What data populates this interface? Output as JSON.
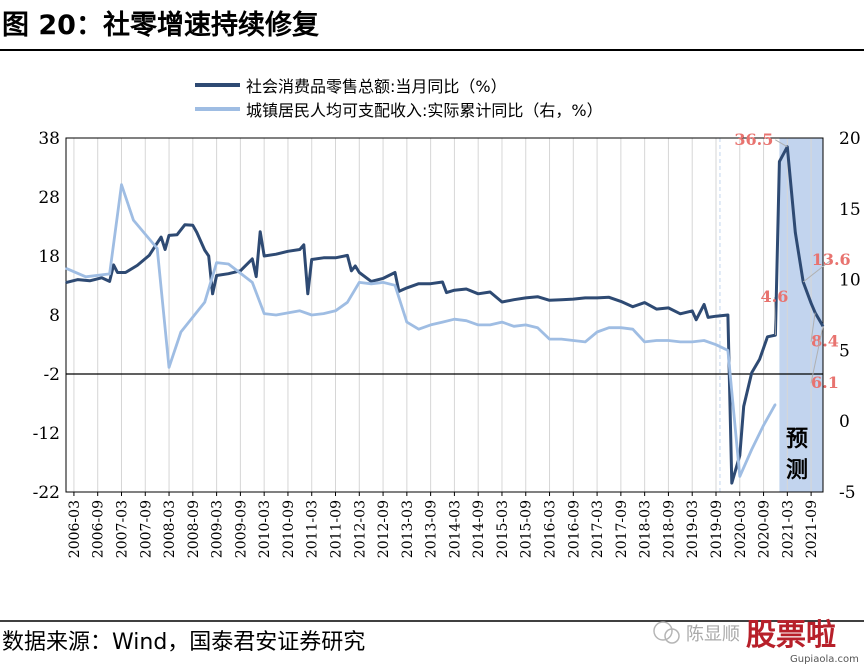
{
  "figure": {
    "title": "图 20：社零增速持续修复",
    "source": "数据来源：Wind，国泰君安证券研究",
    "watermark": {
      "text": "陈显顺",
      "logo_text": "股票啦",
      "url": "Gupiaola.com"
    }
  },
  "colors": {
    "series_dark": "#2e4a73",
    "series_light": "#9fbde3",
    "forecast_fill": "#c2d4ee",
    "annotation": "#e8736f",
    "text": "#000000"
  },
  "chart_data": {
    "type": "line",
    "title": "",
    "left_axis": {
      "min": -22,
      "max": 38,
      "ticks": [
        "38",
        "28",
        "18",
        "8",
        "-2",
        "-12",
        "-22"
      ]
    },
    "right_axis": {
      "min": -5,
      "max": 20,
      "ticks": [
        "20",
        "15",
        "10",
        "5",
        "0",
        "-5"
      ]
    },
    "x_range": [
      "2006-01",
      "2021-12"
    ],
    "x_ticks": [
      "2006-03",
      "2006-09",
      "2007-03",
      "2007-09",
      "2008-03",
      "2008-09",
      "2009-03",
      "2009-09",
      "2010-03",
      "2010-09",
      "2011-03",
      "2011-09",
      "2012-03",
      "2012-09",
      "2013-03",
      "2013-09",
      "2014-03",
      "2014-09",
      "2015-03",
      "2015-09",
      "2016-03",
      "2016-09",
      "2017-03",
      "2017-09",
      "2018-03",
      "2018-09",
      "2019-03",
      "2019-09",
      "2020-03",
      "2020-09",
      "2021-03",
      "2021-09"
    ],
    "forecast_start": "2021-01",
    "forecast_label": "预测",
    "grid": true,
    "legend_position": "top-center",
    "series": [
      {
        "name": "社会消费品零售总额:当月同比（%）",
        "axis": "left",
        "points": [
          [
            "2006-01",
            13.5
          ],
          [
            "2006-04",
            14.0
          ],
          [
            "2006-07",
            13.8
          ],
          [
            "2006-10",
            14.3
          ],
          [
            "2006-12",
            13.7
          ],
          [
            "2007-01",
            16.5
          ],
          [
            "2007-02",
            15.2
          ],
          [
            "2007-04",
            15.2
          ],
          [
            "2007-07",
            16.4
          ],
          [
            "2007-10",
            18.1
          ],
          [
            "2007-12",
            20.2
          ],
          [
            "2008-01",
            21.2
          ],
          [
            "2008-02",
            19.1
          ],
          [
            "2008-03",
            21.5
          ],
          [
            "2008-05",
            21.6
          ],
          [
            "2008-07",
            23.3
          ],
          [
            "2008-09",
            23.2
          ],
          [
            "2008-10",
            22.0
          ],
          [
            "2008-12",
            19.0
          ],
          [
            "2009-01",
            18.0
          ],
          [
            "2009-02",
            11.6
          ],
          [
            "2009-03",
            14.7
          ],
          [
            "2009-06",
            15.0
          ],
          [
            "2009-09",
            15.5
          ],
          [
            "2009-12",
            17.5
          ],
          [
            "2010-01",
            14.5
          ],
          [
            "2010-02",
            22.1
          ],
          [
            "2010-03",
            18.0
          ],
          [
            "2010-06",
            18.3
          ],
          [
            "2010-09",
            18.8
          ],
          [
            "2010-12",
            19.1
          ],
          [
            "2011-01",
            19.9
          ],
          [
            "2011-02",
            11.6
          ],
          [
            "2011-03",
            17.4
          ],
          [
            "2011-06",
            17.7
          ],
          [
            "2011-09",
            17.7
          ],
          [
            "2011-12",
            18.1
          ],
          [
            "2012-01",
            15.5
          ],
          [
            "2012-02",
            16.3
          ],
          [
            "2012-03",
            15.2
          ],
          [
            "2012-06",
            13.7
          ],
          [
            "2012-09",
            14.2
          ],
          [
            "2012-12",
            15.2
          ],
          [
            "2013-01",
            12.0
          ],
          [
            "2013-03",
            12.6
          ],
          [
            "2013-06",
            13.3
          ],
          [
            "2013-09",
            13.3
          ],
          [
            "2013-12",
            13.6
          ],
          [
            "2014-01",
            11.8
          ],
          [
            "2014-03",
            12.2
          ],
          [
            "2014-06",
            12.4
          ],
          [
            "2014-09",
            11.6
          ],
          [
            "2014-12",
            11.9
          ],
          [
            "2015-03",
            10.2
          ],
          [
            "2015-06",
            10.6
          ],
          [
            "2015-09",
            10.9
          ],
          [
            "2015-12",
            11.1
          ],
          [
            "2016-03",
            10.5
          ],
          [
            "2016-06",
            10.6
          ],
          [
            "2016-09",
            10.7
          ],
          [
            "2016-12",
            10.9
          ],
          [
            "2017-03",
            10.9
          ],
          [
            "2017-06",
            11.0
          ],
          [
            "2017-09",
            10.3
          ],
          [
            "2017-12",
            9.4
          ],
          [
            "2018-03",
            10.1
          ],
          [
            "2018-06",
            9.0
          ],
          [
            "2018-09",
            9.2
          ],
          [
            "2018-12",
            8.2
          ],
          [
            "2019-03",
            8.7
          ],
          [
            "2019-04",
            7.2
          ],
          [
            "2019-06",
            9.8
          ],
          [
            "2019-07",
            7.6
          ],
          [
            "2019-09",
            7.8
          ],
          [
            "2019-12",
            8.0
          ],
          [
            "2020-01",
            -20.5
          ],
          [
            "2020-03",
            -15.8
          ],
          [
            "2020-04",
            -7.5
          ],
          [
            "2020-06",
            -1.8
          ],
          [
            "2020-08",
            0.5
          ],
          [
            "2020-10",
            4.3
          ],
          [
            "2020-12",
            4.6
          ],
          [
            "2021-01",
            34.0
          ],
          [
            "2021-03",
            36.5
          ],
          [
            "2021-05",
            22.0
          ],
          [
            "2021-07",
            13.6
          ],
          [
            "2021-09",
            10.0
          ],
          [
            "2021-10",
            8.4
          ],
          [
            "2021-12",
            6.1
          ]
        ]
      },
      {
        "name": "城镇居民人均可支配收入:实际累计同比（右，%）",
        "axis": "right",
        "points": [
          [
            "2006-01",
            10.8
          ],
          [
            "2006-06",
            10.2
          ],
          [
            "2006-12",
            10.4
          ],
          [
            "2007-03",
            16.7
          ],
          [
            "2007-06",
            14.2
          ],
          [
            "2007-12",
            12.2
          ],
          [
            "2008-03",
            3.8
          ],
          [
            "2008-06",
            6.3
          ],
          [
            "2008-12",
            8.4
          ],
          [
            "2009-03",
            11.2
          ],
          [
            "2009-06",
            11.1
          ],
          [
            "2009-12",
            9.8
          ],
          [
            "2010-03",
            7.6
          ],
          [
            "2010-06",
            7.5
          ],
          [
            "2010-12",
            7.8
          ],
          [
            "2011-03",
            7.5
          ],
          [
            "2011-06",
            7.6
          ],
          [
            "2011-09",
            7.8
          ],
          [
            "2011-12",
            8.4
          ],
          [
            "2012-03",
            9.8
          ],
          [
            "2012-06",
            9.7
          ],
          [
            "2012-09",
            9.8
          ],
          [
            "2012-12",
            9.6
          ],
          [
            "2013-03",
            7.0
          ],
          [
            "2013-06",
            6.5
          ],
          [
            "2013-09",
            6.8
          ],
          [
            "2013-12",
            7.0
          ],
          [
            "2014-03",
            7.2
          ],
          [
            "2014-06",
            7.1
          ],
          [
            "2014-09",
            6.8
          ],
          [
            "2014-12",
            6.8
          ],
          [
            "2015-03",
            7.0
          ],
          [
            "2015-06",
            6.7
          ],
          [
            "2015-09",
            6.8
          ],
          [
            "2015-12",
            6.6
          ],
          [
            "2016-03",
            5.8
          ],
          [
            "2016-06",
            5.8
          ],
          [
            "2016-09",
            5.7
          ],
          [
            "2016-12",
            5.6
          ],
          [
            "2017-03",
            6.3
          ],
          [
            "2017-06",
            6.6
          ],
          [
            "2017-09",
            6.6
          ],
          [
            "2017-12",
            6.5
          ],
          [
            "2018-03",
            5.6
          ],
          [
            "2018-06",
            5.7
          ],
          [
            "2018-09",
            5.7
          ],
          [
            "2018-12",
            5.6
          ],
          [
            "2019-03",
            5.6
          ],
          [
            "2019-06",
            5.7
          ],
          [
            "2019-09",
            5.4
          ],
          [
            "2019-12",
            5.0
          ],
          [
            "2020-03",
            -3.9
          ],
          [
            "2020-06",
            -2.0
          ],
          [
            "2020-09",
            -0.3
          ],
          [
            "2020-12",
            1.2
          ]
        ]
      }
    ],
    "annotations": [
      {
        "text": "36.5",
        "date": "2021-03",
        "value": 36.5,
        "axis": "left"
      },
      {
        "text": "13.6",
        "date": "2021-07",
        "value": 13.6,
        "axis": "left"
      },
      {
        "text": "4.6",
        "date": "2020-12",
        "value": 4.6,
        "axis": "left"
      },
      {
        "text": "8.4",
        "date": "2021-10",
        "value": 8.4,
        "axis": "left"
      },
      {
        "text": "6.1",
        "date": "2021-12",
        "value": 6.1,
        "axis": "left"
      }
    ]
  }
}
